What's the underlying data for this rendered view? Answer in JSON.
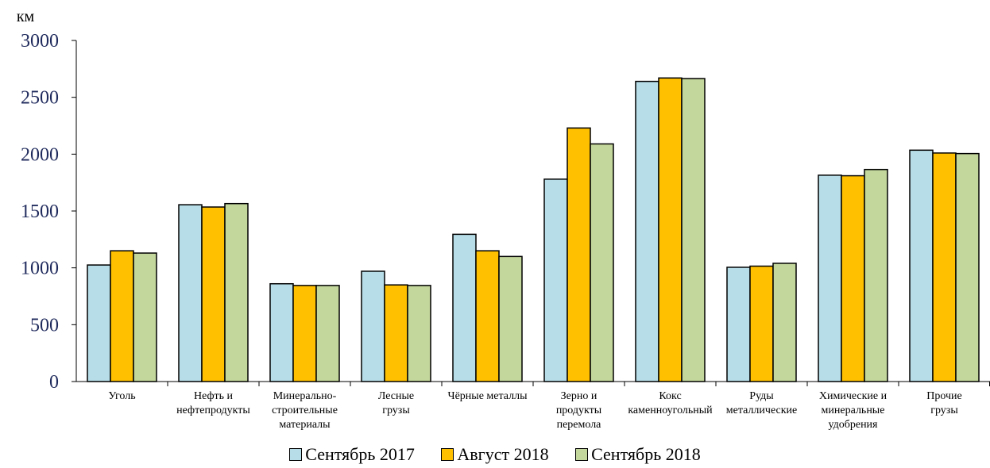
{
  "chart_data": {
    "type": "bar",
    "ylabel": "км",
    "ylim": [
      0,
      3000
    ],
    "yticks": [
      0,
      500,
      1000,
      1500,
      2000,
      2500,
      3000
    ],
    "grid": false,
    "legend_position": "bottom",
    "categories": [
      [
        "Уголь"
      ],
      [
        "Нефть и",
        "нефтепродукты"
      ],
      [
        "Минерально-",
        "строительные",
        "материалы"
      ],
      [
        "Лесные",
        "грузы"
      ],
      [
        "Чёрные металлы"
      ],
      [
        "Зерно и",
        "продукты",
        "перемола"
      ],
      [
        "Кокс",
        "каменноугольный"
      ],
      [
        "Руды",
        "металлические"
      ],
      [
        "Химические и",
        "минеральные",
        "удобрения"
      ],
      [
        "Прочие",
        "грузы"
      ]
    ],
    "series": [
      {
        "name": "Сентябрь 2017",
        "color": "#B7DEE8",
        "values": [
          1025,
          1555,
          860,
          970,
          1295,
          1780,
          2640,
          1005,
          1815,
          2035
        ]
      },
      {
        "name": "Август 2018",
        "color": "#FFC000",
        "values": [
          1150,
          1535,
          845,
          850,
          1150,
          2230,
          2670,
          1015,
          1810,
          2010
        ]
      },
      {
        "name": "Сентябрь 2018",
        "color": "#C3D69B",
        "values": [
          1130,
          1565,
          845,
          845,
          1100,
          2090,
          2665,
          1040,
          1865,
          2005
        ]
      }
    ]
  }
}
